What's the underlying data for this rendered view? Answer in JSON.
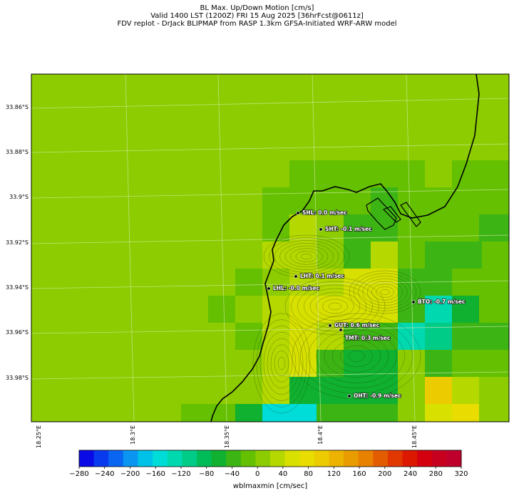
{
  "title": {
    "line1": "BL Max. Up/Down Motion [cm/s]",
    "line2": "Valid 1400 LST (1200Z) FRI 15 Aug 2025 [36hrFcst@0611z]",
    "line3": "FDV replot - DrJack BLIPMAP from RASP 1.3km GFSA-Initiated WRF-ARW model"
  },
  "axes": {
    "lat_labels": [
      "33.86°S",
      "33.88°S",
      "33.9°S",
      "33.92°S",
      "33.94°S",
      "33.96°S",
      "33.98°S"
    ],
    "lon_labels": [
      "18.25°E",
      "18.3°E",
      "18.35°E",
      "18.4°E",
      "18.45°E"
    ]
  },
  "stations": [
    {
      "id": "SHL",
      "label": "SHL: 0.0 m/sec",
      "value": 0.0
    },
    {
      "id": "SHT",
      "label": "SHT: -0.1 m/sec",
      "value": -0.1
    },
    {
      "id": "LHT",
      "label": "LHT: 0.1 m/sec",
      "value": 0.1
    },
    {
      "id": "LHL",
      "label": "LHL: -0.0 m/sec",
      "value": -0.0
    },
    {
      "id": "BTO",
      "label": "BTO: -0.7 m/sec",
      "value": -0.7
    },
    {
      "id": "GUT",
      "label": "GUT: 0.6 m/sec",
      "value": 0.6
    },
    {
      "id": "TMT",
      "label": "TMT: 0.3 m/sec",
      "value": 0.3
    },
    {
      "id": "OHT",
      "label": "OHT: -0.9 m/sec",
      "value": -0.9
    }
  ],
  "colorbar": {
    "label": "wblmaxmin [cm/sec]",
    "ticks": [
      "−280",
      "−240",
      "−200",
      "−160",
      "−120",
      "−80",
      "−40",
      "0",
      "40",
      "80",
      "120",
      "160",
      "200",
      "240",
      "280",
      "320"
    ],
    "colors": [
      "#0a0ae6",
      "#0a3aee",
      "#0a66f2",
      "#0a96f0",
      "#00c2e8",
      "#00dcd8",
      "#00d8b0",
      "#00cc88",
      "#00bc58",
      "#10b030",
      "#3cb414",
      "#64c000",
      "#8ccc00",
      "#b4d800",
      "#d8e000",
      "#e8dc00",
      "#eccc00",
      "#ecb400",
      "#e89c00",
      "#e88000",
      "#e45c00",
      "#e03800",
      "#dc1800",
      "#d40010",
      "#c80020",
      "#c0002c"
    ]
  }
}
